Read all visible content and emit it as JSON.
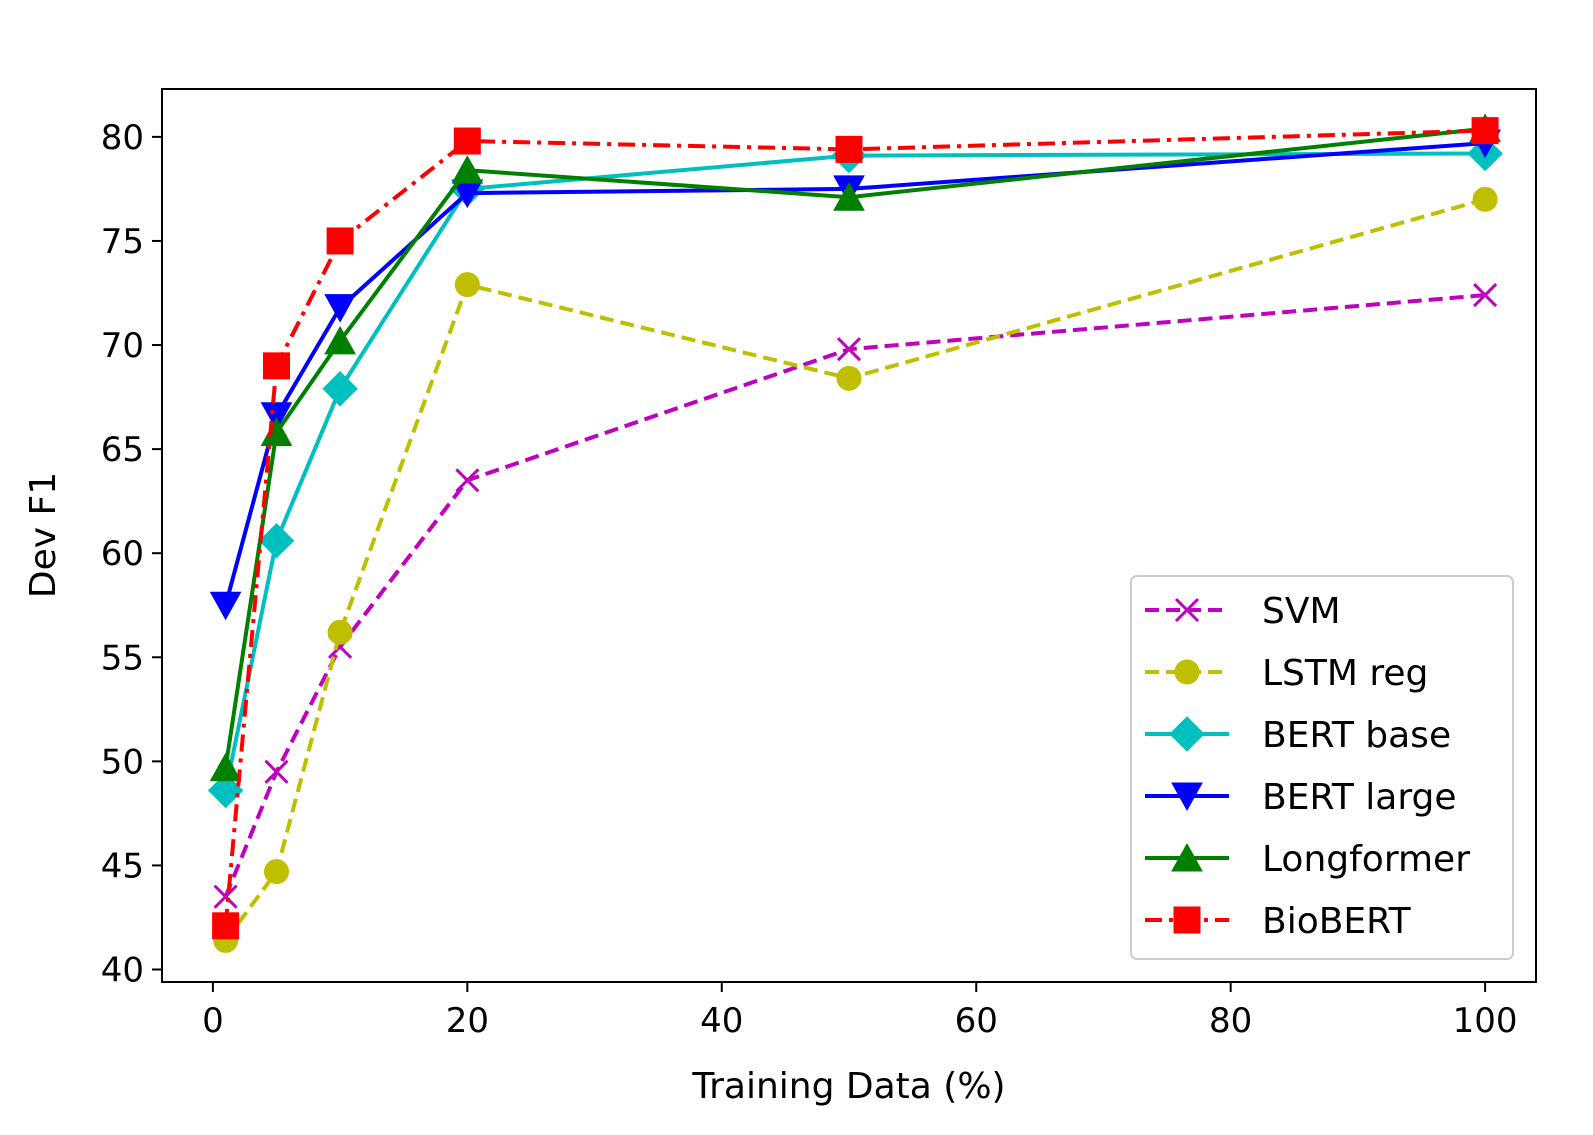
{
  "chart_data": {
    "type": "line",
    "title": "",
    "xlabel": "Training Data (%)",
    "ylabel": "Dev F1",
    "xlim": [
      -4,
      104
    ],
    "ylim": [
      39.4,
      82.3
    ],
    "xticks": [
      0,
      20,
      40,
      60,
      80,
      100
    ],
    "yticks": [
      40,
      45,
      50,
      55,
      60,
      65,
      70,
      75,
      80
    ],
    "grid": false,
    "legend_position": "lower-right",
    "x": [
      1,
      5,
      10,
      20,
      50,
      100
    ],
    "series": [
      {
        "name": "SVM",
        "color": "#bf00bf",
        "dash": "dashed",
        "marker": "x",
        "values": [
          43.5,
          49.5,
          55.5,
          63.5,
          69.8,
          72.4
        ]
      },
      {
        "name": "LSTM reg",
        "color": "#bfbf00",
        "dash": "dashed",
        "marker": "circle",
        "values": [
          41.4,
          44.7,
          56.2,
          72.9,
          68.4,
          77.0
        ]
      },
      {
        "name": "BERT base",
        "color": "#00bfbf",
        "dash": "solid",
        "marker": "diamond",
        "values": [
          48.6,
          60.6,
          67.9,
          77.5,
          79.1,
          79.2
        ]
      },
      {
        "name": "BERT large",
        "color": "#0000ff",
        "dash": "solid",
        "marker": "triangle-down",
        "values": [
          57.5,
          66.6,
          71.8,
          77.3,
          77.5,
          79.7
        ]
      },
      {
        "name": "Longformer",
        "color": "#008000",
        "dash": "solid",
        "marker": "triangle-up",
        "values": [
          49.7,
          65.8,
          70.2,
          78.4,
          77.1,
          80.4
        ]
      },
      {
        "name": "BioBERT",
        "color": "#ff0000",
        "dash": "dashdot",
        "marker": "square",
        "values": [
          42.1,
          69.0,
          75.0,
          79.8,
          79.4,
          80.3
        ]
      }
    ]
  }
}
